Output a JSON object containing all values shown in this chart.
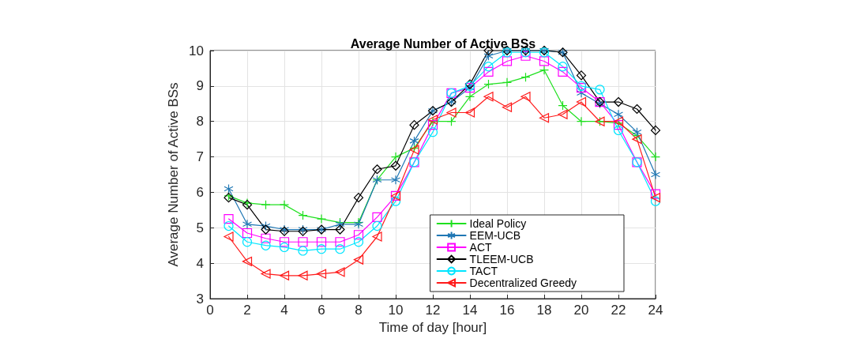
{
  "chart_data": {
    "type": "line",
    "title": "Average Number of Active BSs",
    "xlabel": "Time of day [hour]",
    "ylabel": "Average Number of Active BSs",
    "x": [
      1,
      2,
      3,
      4,
      5,
      6,
      7,
      8,
      9,
      10,
      11,
      12,
      13,
      14,
      15,
      16,
      17,
      18,
      19,
      20,
      21,
      22,
      23,
      24
    ],
    "xlim": [
      0,
      24
    ],
    "xticks": [
      0,
      2,
      4,
      6,
      8,
      10,
      12,
      14,
      16,
      18,
      20,
      22,
      24
    ],
    "ylim": [
      3,
      10
    ],
    "yticks": [
      3,
      4,
      5,
      6,
      7,
      8,
      9,
      10
    ],
    "grid": true,
    "legend": "bottom right",
    "line_style": "solid",
    "series": [
      {
        "name": "Ideal Policy",
        "color": "#1fe01f",
        "marker": "cross",
        "values": [
          5.9,
          5.7,
          5.65,
          5.65,
          5.35,
          5.25,
          5.15,
          5.15,
          6.35,
          7.0,
          7.25,
          8.0,
          8.0,
          8.7,
          9.05,
          9.1,
          9.25,
          9.45,
          8.45,
          8.0,
          8.0,
          7.95,
          7.6,
          7.0
        ]
      },
      {
        "name": "EEM-UCB",
        "color": "#1f77b4",
        "marker": "cross",
        "values": [
          6.1,
          5.1,
          5.05,
          4.95,
          4.95,
          4.95,
          5.1,
          5.1,
          6.35,
          6.35,
          7.45,
          8.3,
          8.55,
          8.95,
          9.85,
          10,
          10,
          10,
          9.95,
          8.8,
          8.5,
          8.2,
          7.7,
          6.5
        ]
      },
      {
        "name": "ACT",
        "color": "#ff00ff",
        "marker": "square",
        "values": [
          5.25,
          4.85,
          4.7,
          4.6,
          4.6,
          4.6,
          4.6,
          4.8,
          5.3,
          5.9,
          6.85,
          7.9,
          8.8,
          8.95,
          9.4,
          9.7,
          9.85,
          9.7,
          9.4,
          8.95,
          8.55,
          7.9,
          6.85,
          5.95
        ]
      },
      {
        "name": "TLEEM-UCB",
        "color": "#000000",
        "marker": "diamond",
        "values": [
          5.85,
          5.65,
          4.95,
          4.9,
          4.9,
          4.95,
          4.95,
          5.85,
          6.65,
          6.75,
          7.9,
          8.3,
          8.55,
          9.05,
          10,
          10,
          10,
          10,
          9.95,
          9.3,
          8.55,
          8.55,
          8.35,
          7.75
        ]
      },
      {
        "name": "TACT",
        "color": "#00e5ff",
        "marker": "circle",
        "values": [
          5.05,
          4.6,
          4.5,
          4.45,
          4.35,
          4.4,
          4.4,
          4.6,
          5.05,
          5.75,
          6.85,
          7.7,
          8.8,
          9.0,
          9.55,
          9.95,
          9.95,
          9.95,
          9.55,
          9.0,
          8.9,
          7.75,
          6.85,
          5.75
        ]
      },
      {
        "name": "Decentralized Greedy",
        "color": "#ff1a1a",
        "marker": "triangle",
        "values": [
          4.75,
          4.05,
          3.7,
          3.65,
          3.65,
          3.7,
          3.75,
          4.1,
          4.75,
          5.9,
          7.2,
          8.05,
          8.25,
          8.25,
          8.7,
          8.4,
          8.7,
          8.1,
          8.2,
          8.55,
          8.0,
          8.0,
          7.5,
          5.85
        ]
      }
    ]
  }
}
